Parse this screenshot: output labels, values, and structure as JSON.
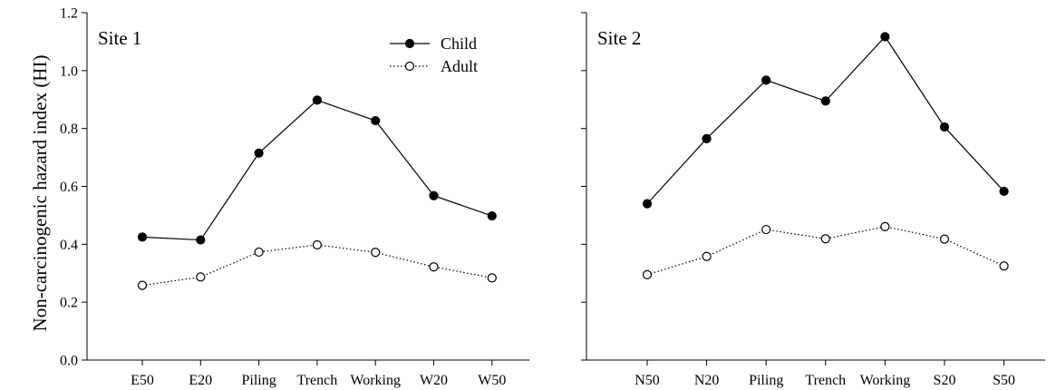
{
  "ylabel": "Non-carcinogenic hazard index (HI)",
  "legend": {
    "position": "top-right of Site 1 panel",
    "entries": [
      {
        "label": "Child",
        "marker": "filled-circle",
        "line": "solid"
      },
      {
        "label": "Adult",
        "marker": "open-circle",
        "line": "dotted"
      }
    ]
  },
  "chart_data": [
    {
      "type": "line",
      "title": "Site 1",
      "categories": [
        "E50",
        "E20",
        "Piling",
        "Trench",
        "Working",
        "W20",
        "W50"
      ],
      "ylim": [
        0.0,
        1.2
      ],
      "yticks": [
        "0.0",
        "0.2",
        "0.4",
        "0.6",
        "0.8",
        "1.0",
        "1.2"
      ],
      "grid": false,
      "series": [
        {
          "name": "Child",
          "values": [
            0.425,
            0.415,
            0.715,
            0.898,
            0.827,
            0.568,
            0.498
          ]
        },
        {
          "name": "Adult",
          "values": [
            0.258,
            0.287,
            0.373,
            0.398,
            0.372,
            0.322,
            0.284
          ]
        }
      ]
    },
    {
      "type": "line",
      "title": "Site 2",
      "categories": [
        "N50",
        "N20",
        "Piling",
        "Trench",
        "Working",
        "S20",
        "S50"
      ],
      "ylim": [
        0.0,
        1.2
      ],
      "grid": false,
      "series": [
        {
          "name": "Child",
          "values": [
            0.54,
            0.765,
            0.967,
            0.895,
            1.117,
            0.805,
            0.583
          ]
        },
        {
          "name": "Adult",
          "values": [
            0.295,
            0.358,
            0.451,
            0.419,
            0.461,
            0.418,
            0.325
          ]
        }
      ]
    }
  ]
}
